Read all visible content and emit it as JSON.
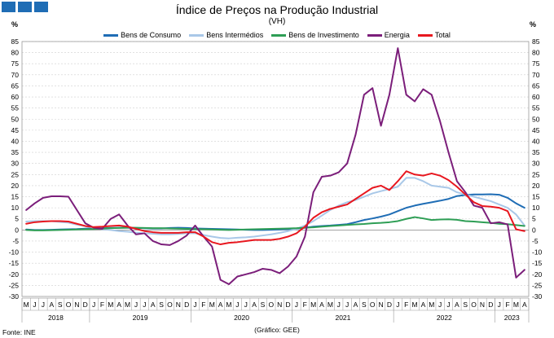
{
  "header": {
    "title": "Índice de Preços na Produção Industrial",
    "subtitle": "(VH)",
    "unit_left": "%",
    "unit_right": "%"
  },
  "footer": {
    "source": "Fonte: INE",
    "credit": "(Gráfico: GEE)"
  },
  "chart_data": {
    "type": "line",
    "title": "Índice de Preços na Produção Industrial",
    "subtitle": "(VH)",
    "ylim": [
      -30,
      85
    ],
    "yticks": [
      -30,
      -25,
      -20,
      -15,
      -10,
      -5,
      0,
      5,
      10,
      15,
      20,
      25,
      30,
      35,
      40,
      45,
      50,
      55,
      60,
      65,
      70,
      75,
      80,
      85
    ],
    "grid": true,
    "legend_position": "top",
    "x": [
      "M",
      "J",
      "J",
      "A",
      "S",
      "O",
      "N",
      "D",
      "J",
      "F",
      "M",
      "A",
      "M",
      "J",
      "J",
      "A",
      "S",
      "O",
      "N",
      "D",
      "J",
      "F",
      "M",
      "A",
      "M",
      "J",
      "J",
      "A",
      "S",
      "O",
      "N",
      "D",
      "J",
      "F",
      "M",
      "A",
      "M",
      "J",
      "J",
      "A",
      "S",
      "O",
      "N",
      "D",
      "J",
      "F",
      "M",
      "A",
      "M",
      "J",
      "J",
      "A",
      "S",
      "O",
      "N",
      "D",
      "J",
      "F",
      "M",
      "A"
    ],
    "years": [
      {
        "label": "2018",
        "start": 0,
        "end": 7
      },
      {
        "label": "2019",
        "start": 8,
        "end": 19
      },
      {
        "label": "2020",
        "start": 20,
        "end": 31
      },
      {
        "label": "2021",
        "start": 32,
        "end": 43
      },
      {
        "label": "2022",
        "start": 44,
        "end": 55
      },
      {
        "label": "2023",
        "start": 56,
        "end": 59
      }
    ],
    "series": [
      {
        "name": "Bens de Consumo",
        "color": "#1f6db5",
        "values": [
          0.2,
          0.0,
          0.0,
          0.1,
          0.2,
          0.3,
          0.4,
          0.6,
          0.7,
          0.8,
          0.9,
          1.0,
          1.0,
          0.9,
          0.8,
          0.7,
          0.7,
          0.9,
          1.0,
          0.9,
          0.7,
          0.6,
          0.5,
          0.4,
          0.3,
          0.2,
          0.1,
          0.0,
          0.0,
          0.1,
          0.2,
          0.4,
          0.6,
          1.0,
          1.5,
          1.8,
          2.0,
          2.3,
          2.6,
          3.5,
          4.5,
          5.2,
          6.0,
          7.0,
          8.5,
          10.0,
          11.0,
          11.8,
          12.5,
          13.2,
          14.0,
          15.3,
          15.8,
          16.0,
          16.0,
          16.1,
          15.9,
          14.5,
          12.0,
          10.0
        ]
      },
      {
        "name": "Bens Intermédios",
        "color": "#a9c8e8",
        "values": [
          3.8,
          4.0,
          4.0,
          4.0,
          3.6,
          3.3,
          2.4,
          1.7,
          1.0,
          0.3,
          0.0,
          -0.5,
          -0.8,
          -1.2,
          -1.5,
          -1.7,
          -2.0,
          -2.0,
          -1.8,
          -1.5,
          -1.5,
          -2.3,
          -3.0,
          -3.6,
          -3.8,
          -3.5,
          -3.3,
          -3.0,
          -2.5,
          -2.0,
          -1.3,
          -0.5,
          0.5,
          2.0,
          4.0,
          6.5,
          9.0,
          11.0,
          12.5,
          13.5,
          15.0,
          16.5,
          17.5,
          18.5,
          19.5,
          23.5,
          23.5,
          22.0,
          20.0,
          19.5,
          19.0,
          17.0,
          16.0,
          15.0,
          14.0,
          13.0,
          11.5,
          10.0,
          7.0,
          2.0
        ]
      },
      {
        "name": "Bens de Investimento",
        "color": "#2e9e55",
        "values": [
          0.0,
          -0.2,
          -0.2,
          -0.1,
          0.0,
          0.1,
          0.2,
          0.3,
          0.4,
          0.6,
          0.8,
          0.9,
          1.0,
          1.0,
          0.9,
          0.8,
          0.8,
          0.7,
          0.6,
          0.5,
          0.4,
          0.3,
          0.2,
          0.1,
          0.0,
          0.1,
          0.2,
          0.3,
          0.4,
          0.5,
          0.6,
          0.7,
          0.8,
          1.0,
          1.2,
          1.5,
          1.8,
          2.0,
          2.3,
          2.5,
          2.7,
          3.0,
          3.2,
          3.5,
          4.0,
          5.0,
          5.8,
          5.2,
          4.5,
          4.7,
          4.8,
          4.6,
          4.0,
          3.8,
          3.5,
          3.2,
          2.8,
          2.6,
          2.2,
          1.8
        ]
      },
      {
        "name": "Energia",
        "color": "#7b1e7a",
        "values": [
          9.0,
          12.0,
          14.5,
          15.2,
          15.2,
          15.0,
          9.0,
          3.0,
          1.0,
          0.5,
          5.0,
          7.0,
          2.0,
          -2.0,
          -1.5,
          -5.0,
          -6.5,
          -6.8,
          -5.0,
          -2.5,
          2.0,
          -3.0,
          -7.5,
          -22.5,
          -24.5,
          -21.0,
          -20.0,
          -19.0,
          -17.5,
          -18.0,
          -19.5,
          -16.5,
          -12.0,
          -3.0,
          17.0,
          24.0,
          24.5,
          26.0,
          30.0,
          43.0,
          61.0,
          64.0,
          47.0,
          61.0,
          82.0,
          61.0,
          58.0,
          63.5,
          61.0,
          49.0,
          35.0,
          22.0,
          17.0,
          11.0,
          10.0,
          3.0,
          3.5,
          2.5,
          -21.5,
          -18.0
        ]
      },
      {
        "name": "Total",
        "color": "#e8171f",
        "values": [
          2.8,
          3.5,
          3.8,
          4.0,
          4.0,
          3.8,
          2.8,
          1.8,
          1.3,
          1.5,
          1.8,
          2.0,
          1.5,
          0.5,
          -0.5,
          -1.0,
          -1.3,
          -1.3,
          -1.3,
          -1.0,
          -1.0,
          -3.0,
          -5.5,
          -6.5,
          -5.8,
          -5.5,
          -5.0,
          -4.5,
          -4.5,
          -4.5,
          -4.0,
          -3.0,
          -1.5,
          1.5,
          5.5,
          8.0,
          9.5,
          10.5,
          11.5,
          14.0,
          16.5,
          19.0,
          20.0,
          18.0,
          22.0,
          26.5,
          25.0,
          24.5,
          25.5,
          24.5,
          22.5,
          19.5,
          16.0,
          12.5,
          10.8,
          10.5,
          10.0,
          8.5,
          0.3,
          -0.5
        ]
      }
    ]
  }
}
